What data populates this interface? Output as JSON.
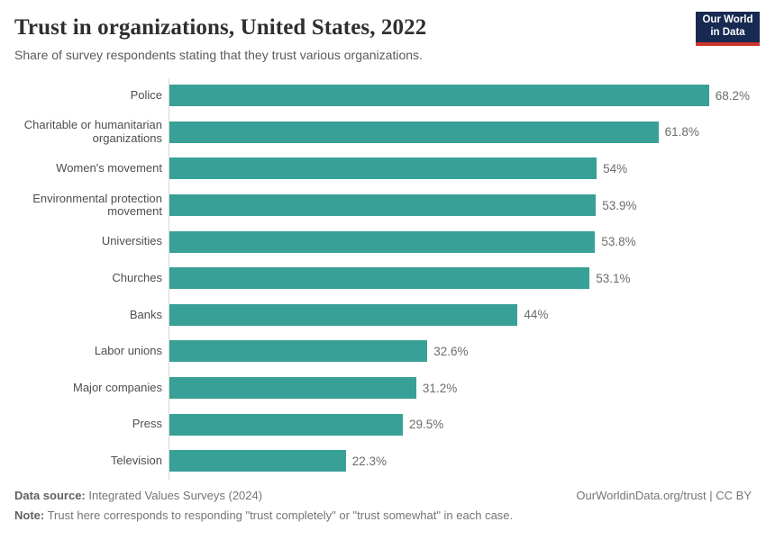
{
  "header": {
    "title": "Trust in organizations, United States, 2022",
    "subtitle": "Share of survey respondents stating that they trust various organizations.",
    "logo": {
      "line1": "Our World",
      "line2": "in Data"
    }
  },
  "chart_data": {
    "type": "bar",
    "orientation": "horizontal",
    "title": "Trust in organizations, United States, 2022",
    "subtitle": "Share of survey respondents stating that they trust various organizations.",
    "xlabel": "",
    "ylabel": "",
    "unit": "%",
    "xlim": [
      0,
      70
    ],
    "grid": false,
    "legend": "none",
    "bar_color": "#38a096",
    "categories": [
      "Police",
      "Charitable or humanitarian\norganizations",
      "Women's movement",
      "Environmental protection\nmovement",
      "Universities",
      "Churches",
      "Banks",
      "Labor unions",
      "Major companies",
      "Press",
      "Television"
    ],
    "values": [
      68.2,
      61.8,
      54,
      53.9,
      53.8,
      53.1,
      44,
      32.6,
      31.2,
      29.5,
      22.3
    ],
    "value_labels": [
      "68.2%",
      "61.8%",
      "54%",
      "53.9%",
      "53.8%",
      "53.1%",
      "44%",
      "32.6%",
      "31.2%",
      "29.5%",
      "22.3%"
    ]
  },
  "footer": {
    "data_source_label": "Data source:",
    "data_source": " Integrated Values Surveys (2024)",
    "note_label": "Note:",
    "note": " Trust here corresponds to responding \"trust completely\" or \"trust somewhat\" in each case.",
    "credit": "OurWorldinData.org/trust | CC BY"
  },
  "colors": {
    "bar": "#38a096",
    "axis_line": "#d6d6d6",
    "logo_navy": "#182a51",
    "logo_red": "#cf342e"
  }
}
